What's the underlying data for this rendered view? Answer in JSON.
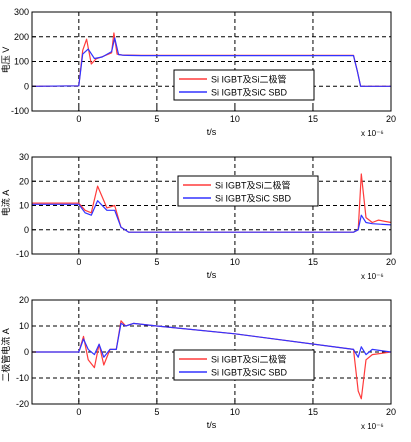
{
  "legend_labels": [
    "Si IGBT及Si二极管",
    "Si IGBT及SiC SBD"
  ],
  "colors": {
    "series_a": "#ff3b3b",
    "series_b": "#3333ff",
    "axis": "#000000",
    "grid": "#000000"
  },
  "chart_data": [
    {
      "type": "line",
      "ylabel": "电压 V",
      "xlabel": "t/s",
      "exponent": "x 10⁻⁶",
      "xlim": [
        -3,
        20
      ],
      "ylim": [
        -100,
        300
      ],
      "xticks": [
        0,
        5,
        10,
        15,
        20
      ],
      "yticks": [
        -100,
        0,
        100,
        200,
        300
      ],
      "grid": true,
      "legend_position": "center-right",
      "series": [
        {
          "name": "Si IGBT及Si二极管",
          "x": [
            -3,
            0,
            0.25,
            0.5,
            0.8,
            1.1,
            1.6,
            2.1,
            2.25,
            2.45,
            2.8,
            4,
            10,
            17.6,
            17.85,
            18.05,
            20
          ],
          "y": [
            0,
            2,
            145,
            190,
            90,
            110,
            122,
            135,
            215,
            130,
            126,
            125,
            125,
            125,
            60,
            0,
            0
          ]
        },
        {
          "name": "Si IGBT及SiC SBD",
          "x": [
            -3,
            0,
            0.25,
            0.6,
            1.0,
            1.5,
            2.1,
            2.3,
            2.55,
            2.9,
            4,
            10,
            17.6,
            17.85,
            18.05,
            20
          ],
          "y": [
            0,
            2,
            130,
            150,
            112,
            118,
            140,
            195,
            128,
            125,
            124,
            124,
            124,
            60,
            0,
            0
          ]
        }
      ]
    },
    {
      "type": "line",
      "ylabel": "电流 A",
      "xlabel": "t/s",
      "exponent": "x 10⁻⁶",
      "xlim": [
        -3,
        20
      ],
      "ylim": [
        -10,
        30
      ],
      "xticks": [
        0,
        5,
        10,
        15,
        20
      ],
      "yticks": [
        -10,
        0,
        10,
        20,
        30
      ],
      "grid": true,
      "legend_position": "center-right",
      "series": [
        {
          "name": "Si IGBT及Si二极管",
          "x": [
            -3,
            0,
            0.4,
            0.8,
            1.2,
            1.8,
            2.3,
            2.7,
            3.2,
            5,
            10,
            17.6,
            17.9,
            18.1,
            18.4,
            18.8,
            19.2,
            20
          ],
          "y": [
            11,
            11,
            8,
            7,
            18,
            9,
            10,
            1,
            -1,
            -1,
            -1,
            -1,
            0,
            23,
            5,
            3,
            4,
            3
          ]
        },
        {
          "name": "Si IGBT及SiC SBD",
          "x": [
            -3,
            0,
            0.4,
            0.8,
            1.2,
            1.8,
            2.3,
            2.7,
            3.2,
            5,
            10,
            17.6,
            17.9,
            18.1,
            18.4,
            18.8,
            20
          ],
          "y": [
            10.5,
            10.5,
            7,
            6,
            12,
            8,
            8,
            1,
            -1,
            -1,
            -1,
            -1,
            0,
            6,
            3,
            2.5,
            2
          ]
        }
      ]
    },
    {
      "type": "line",
      "ylabel": "二极管电流 A",
      "xlabel": "t/s",
      "exponent": "x 10⁻⁶",
      "xlim": [
        -3,
        20
      ],
      "ylim": [
        -20,
        20
      ],
      "xticks": [
        0,
        5,
        10,
        15,
        20
      ],
      "yticks": [
        -20,
        -10,
        0,
        10,
        20
      ],
      "grid": true,
      "legend_position": "bottom-center",
      "series": [
        {
          "name": "Si IGBT及Si二极管",
          "x": [
            -3,
            0,
            0.3,
            0.6,
            1.0,
            1.3,
            1.6,
            2.0,
            2.4,
            2.7,
            3.0,
            3.5,
            5,
            10,
            17.6,
            17.9,
            18.1,
            18.4,
            18.8,
            20
          ],
          "y": [
            0,
            0,
            6,
            -3,
            -6,
            3,
            -5,
            1,
            1,
            12,
            10,
            11,
            10,
            7,
            1,
            -15,
            -18,
            -3,
            -1,
            0
          ]
        },
        {
          "name": "Si IGBT及SiC SBD",
          "x": [
            -3,
            0,
            0.3,
            0.6,
            1.0,
            1.3,
            1.6,
            2.0,
            2.4,
            2.7,
            3.0,
            3.5,
            5,
            10,
            17.6,
            17.9,
            18.1,
            18.4,
            18.8,
            20
          ],
          "y": [
            0,
            0,
            5,
            1,
            -1,
            3,
            -2,
            1,
            1,
            11,
            10,
            11,
            10,
            7,
            1,
            -2,
            2,
            -1,
            1,
            0
          ]
        }
      ]
    }
  ]
}
